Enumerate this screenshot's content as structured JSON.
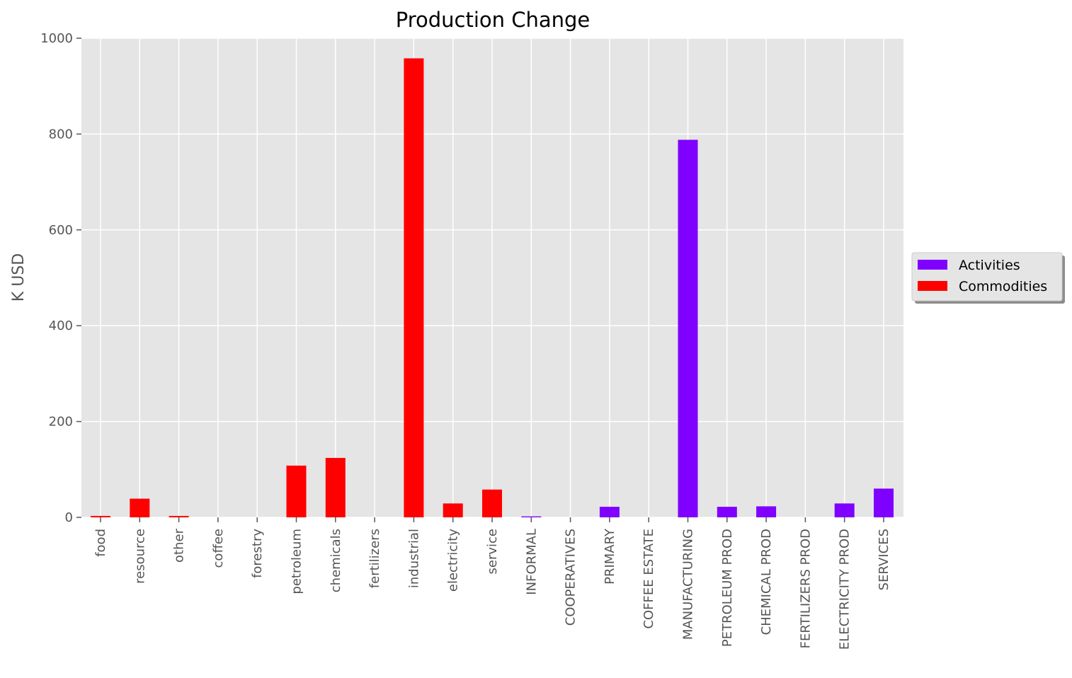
{
  "chart_data": {
    "type": "bar",
    "title": "Production Change",
    "xlabel": "",
    "ylabel": "K USD",
    "ylim": [
      0,
      1000
    ],
    "yticks": [
      0,
      200,
      400,
      600,
      800,
      1000
    ],
    "grid": true,
    "legend_position": "right",
    "categories": [
      "food",
      "resource",
      "other",
      "coffee",
      "forestry",
      "petroleum",
      "chemicals",
      "fertilizers",
      "industrial",
      "electricity",
      "service",
      "INFORMAL",
      "COOPERATIVES",
      "PRIMARY",
      "COFFEE ESTATE",
      "MANUFACTURING",
      "PETROLEUM PROD",
      "CHEMICAL PROD",
      "FERTILIZERS PROD",
      "ELECTRICITY PROD",
      "SERVICES"
    ],
    "series": [
      {
        "name": "Activities",
        "color": "#8000ff",
        "values": [
          null,
          null,
          null,
          null,
          null,
          null,
          null,
          null,
          null,
          null,
          null,
          2,
          0,
          22,
          0,
          788,
          22,
          23,
          0,
          29,
          60
        ]
      },
      {
        "name": "Commodities",
        "color": "#ff0000",
        "values": [
          3,
          39,
          3,
          0,
          0,
          108,
          124,
          0,
          958,
          29,
          58,
          null,
          null,
          null,
          null,
          null,
          null,
          null,
          null,
          null,
          null
        ]
      }
    ]
  }
}
